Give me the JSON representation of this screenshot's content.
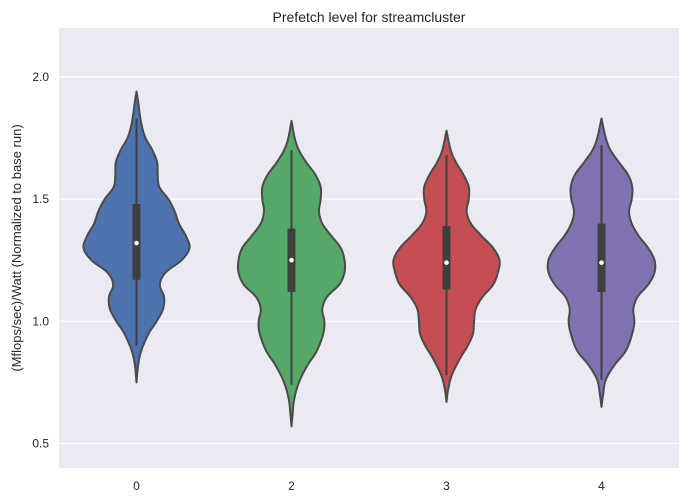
{
  "chart_data": {
    "type": "violin",
    "title": "Prefetch level for streamcluster",
    "xlabel": "",
    "ylabel": "(Mflops/sec)/Watt (Normalized to base run)",
    "ylim": [
      0.4,
      2.2
    ],
    "yticks": [
      "0.5",
      "1.0",
      "1.5",
      "2.0"
    ],
    "ytick_values": [
      0.5,
      1.0,
      1.5,
      2.0
    ],
    "grid": true,
    "categories": [
      "0",
      "2",
      "3",
      "4"
    ],
    "colors": [
      "#4c72b0",
      "#55a868",
      "#c44e52",
      "#8172b2"
    ],
    "violins": [
      {
        "category": "0",
        "min": 0.75,
        "max": 1.94,
        "q1": 1.17,
        "median": 1.32,
        "q3": 1.48,
        "whisker_low": 0.9,
        "whisker_high": 1.83,
        "profile": [
          [
            0.75,
            0.0
          ],
          [
            0.82,
            0.03
          ],
          [
            0.88,
            0.09
          ],
          [
            0.95,
            0.23
          ],
          [
            1.0,
            0.38
          ],
          [
            1.05,
            0.5
          ],
          [
            1.1,
            0.52
          ],
          [
            1.15,
            0.44
          ],
          [
            1.2,
            0.55
          ],
          [
            1.25,
            0.85
          ],
          [
            1.3,
            1.0
          ],
          [
            1.35,
            0.93
          ],
          [
            1.4,
            0.8
          ],
          [
            1.45,
            0.72
          ],
          [
            1.5,
            0.6
          ],
          [
            1.55,
            0.43
          ],
          [
            1.6,
            0.4
          ],
          [
            1.65,
            0.39
          ],
          [
            1.7,
            0.3
          ],
          [
            1.75,
            0.17
          ],
          [
            1.8,
            0.1
          ],
          [
            1.85,
            0.06
          ],
          [
            1.9,
            0.03
          ],
          [
            1.94,
            0.0
          ]
        ]
      },
      {
        "category": "2",
        "min": 0.57,
        "max": 1.82,
        "q1": 1.12,
        "median": 1.25,
        "q3": 1.38,
        "whisker_low": 0.74,
        "whisker_high": 1.7,
        "profile": [
          [
            0.57,
            0.0
          ],
          [
            0.62,
            0.02
          ],
          [
            0.68,
            0.05
          ],
          [
            0.75,
            0.14
          ],
          [
            0.82,
            0.3
          ],
          [
            0.88,
            0.48
          ],
          [
            0.95,
            0.6
          ],
          [
            1.0,
            0.62
          ],
          [
            1.05,
            0.58
          ],
          [
            1.1,
            0.67
          ],
          [
            1.15,
            0.9
          ],
          [
            1.2,
            1.0
          ],
          [
            1.25,
            1.0
          ],
          [
            1.3,
            0.93
          ],
          [
            1.35,
            0.75
          ],
          [
            1.4,
            0.58
          ],
          [
            1.45,
            0.52
          ],
          [
            1.5,
            0.55
          ],
          [
            1.55,
            0.55
          ],
          [
            1.6,
            0.45
          ],
          [
            1.65,
            0.28
          ],
          [
            1.7,
            0.14
          ],
          [
            1.75,
            0.06
          ],
          [
            1.82,
            0.0
          ]
        ]
      },
      {
        "category": "3",
        "min": 0.67,
        "max": 1.78,
        "q1": 1.13,
        "median": 1.24,
        "q3": 1.39,
        "whisker_low": 0.78,
        "whisker_high": 1.68,
        "profile": [
          [
            0.67,
            0.0
          ],
          [
            0.72,
            0.03
          ],
          [
            0.78,
            0.1
          ],
          [
            0.85,
            0.26
          ],
          [
            0.9,
            0.4
          ],
          [
            0.95,
            0.5
          ],
          [
            1.0,
            0.52
          ],
          [
            1.05,
            0.55
          ],
          [
            1.1,
            0.68
          ],
          [
            1.15,
            0.88
          ],
          [
            1.2,
            0.97
          ],
          [
            1.25,
            1.0
          ],
          [
            1.3,
            0.88
          ],
          [
            1.35,
            0.66
          ],
          [
            1.4,
            0.46
          ],
          [
            1.45,
            0.38
          ],
          [
            1.5,
            0.42
          ],
          [
            1.55,
            0.42
          ],
          [
            1.6,
            0.32
          ],
          [
            1.65,
            0.18
          ],
          [
            1.7,
            0.08
          ],
          [
            1.78,
            0.0
          ]
        ]
      },
      {
        "category": "4",
        "min": 0.65,
        "max": 1.83,
        "q1": 1.12,
        "median": 1.24,
        "q3": 1.4,
        "whisker_low": 0.76,
        "whisker_high": 1.72,
        "profile": [
          [
            0.65,
            0.0
          ],
          [
            0.7,
            0.03
          ],
          [
            0.76,
            0.08
          ],
          [
            0.82,
            0.24
          ],
          [
            0.88,
            0.46
          ],
          [
            0.95,
            0.58
          ],
          [
            1.0,
            0.62
          ],
          [
            1.05,
            0.6
          ],
          [
            1.1,
            0.68
          ],
          [
            1.15,
            0.88
          ],
          [
            1.2,
            1.0
          ],
          [
            1.25,
            1.0
          ],
          [
            1.3,
            0.88
          ],
          [
            1.35,
            0.7
          ],
          [
            1.4,
            0.57
          ],
          [
            1.45,
            0.52
          ],
          [
            1.5,
            0.57
          ],
          [
            1.55,
            0.58
          ],
          [
            1.6,
            0.5
          ],
          [
            1.65,
            0.33
          ],
          [
            1.7,
            0.17
          ],
          [
            1.75,
            0.08
          ],
          [
            1.83,
            0.0
          ]
        ]
      }
    ]
  }
}
